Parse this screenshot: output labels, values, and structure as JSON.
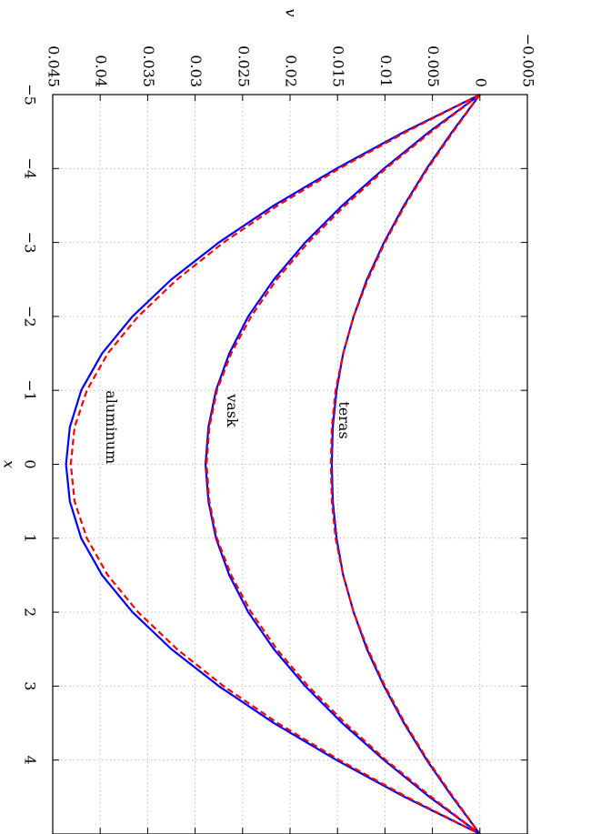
{
  "chart_data": {
    "type": "line",
    "xlabel": "x",
    "ylabel": "v",
    "xlim": [
      -5,
      5
    ],
    "ylim": [
      -0.005,
      0.045
    ],
    "x_ticks": [
      -5,
      -4,
      -3,
      -2,
      -1,
      0,
      1,
      2,
      3,
      4
    ],
    "x_tick_labels": [
      "−5",
      "−4",
      "−3",
      "−2",
      "−1",
      "0",
      "1",
      "2",
      "3",
      "4"
    ],
    "y_ticks": [
      -0.005,
      0,
      0.005,
      0.01,
      0.015,
      0.02,
      0.025,
      0.03,
      0.035,
      0.04,
      0.045
    ],
    "y_tick_labels": [
      "−0.005",
      "0",
      "0.005",
      "0.01",
      "0.015",
      "0.02",
      "0.025",
      "0.03",
      "0.035",
      "0.04",
      "0.045"
    ],
    "grid": true,
    "orientation": "rotated 90° clockwise (x runs top-to-bottom, v runs right-to-left)",
    "x": [
      -5,
      -4.5,
      -4,
      -3.5,
      -3,
      -2.5,
      -2,
      -1.5,
      -1,
      -0.5,
      0,
      0.5,
      1,
      1.5,
      2,
      2.5,
      3,
      3.5,
      4,
      4.5,
      5
    ],
    "series": [
      {
        "material": "teras",
        "style": "solid",
        "color": "#0000ff",
        "values": [
          0,
          0.0029,
          0.0056,
          0.008,
          0.0101,
          0.0119,
          0.0133,
          0.0144,
          0.0151,
          0.0155,
          0.0156,
          0.0155,
          0.0151,
          0.0144,
          0.0133,
          0.0119,
          0.0101,
          0.008,
          0.0056,
          0.0029,
          0
        ]
      },
      {
        "material": "teras",
        "style": "dashed",
        "color": "#ff0000",
        "values": [
          0,
          0.0028,
          0.0055,
          0.0079,
          0.01,
          0.0118,
          0.0133,
          0.0144,
          0.0152,
          0.0156,
          0.0157,
          0.0156,
          0.0152,
          0.0144,
          0.0133,
          0.0118,
          0.01,
          0.0079,
          0.0055,
          0.0028,
          0
        ]
      },
      {
        "material": "vask",
        "style": "solid",
        "color": "#0000ff",
        "values": [
          0,
          0.0053,
          0.0101,
          0.0145,
          0.0184,
          0.0217,
          0.0244,
          0.0264,
          0.0278,
          0.0286,
          0.0289,
          0.0286,
          0.0278,
          0.0264,
          0.0244,
          0.0217,
          0.0184,
          0.0145,
          0.0101,
          0.0053,
          0
        ]
      },
      {
        "material": "vask",
        "style": "dashed",
        "color": "#ff0000",
        "values": [
          0,
          0.0051,
          0.0099,
          0.0142,
          0.0181,
          0.0214,
          0.0241,
          0.0262,
          0.0277,
          0.0285,
          0.0288,
          0.0285,
          0.0277,
          0.0262,
          0.0241,
          0.0214,
          0.0181,
          0.0142,
          0.0099,
          0.0051,
          0
        ]
      },
      {
        "material": "aluminum",
        "style": "solid",
        "color": "#0000ff",
        "values": [
          0,
          0.0079,
          0.0151,
          0.0217,
          0.0275,
          0.0325,
          0.0366,
          0.0398,
          0.042,
          0.0432,
          0.0436,
          0.0432,
          0.042,
          0.0398,
          0.0366,
          0.0325,
          0.0275,
          0.0217,
          0.0151,
          0.0079,
          0
        ]
      },
      {
        "material": "aluminum",
        "style": "dashed",
        "color": "#ff0000",
        "values": [
          0,
          0.0077,
          0.0148,
          0.0213,
          0.027,
          0.0319,
          0.036,
          0.0392,
          0.0414,
          0.0427,
          0.0431,
          0.0427,
          0.0414,
          0.0392,
          0.036,
          0.0319,
          0.027,
          0.0213,
          0.0148,
          0.0077,
          0
        ]
      }
    ],
    "annotations": [
      {
        "text": "teras",
        "x": -0.85,
        "v": 0.0144
      },
      {
        "text": "vask",
        "x": -0.95,
        "v": 0.0262
      },
      {
        "text": "aluminum",
        "x": -1.0,
        "v": 0.0389
      }
    ],
    "colors": {
      "solid": "#0000ff",
      "dashed": "#ff0000"
    }
  }
}
